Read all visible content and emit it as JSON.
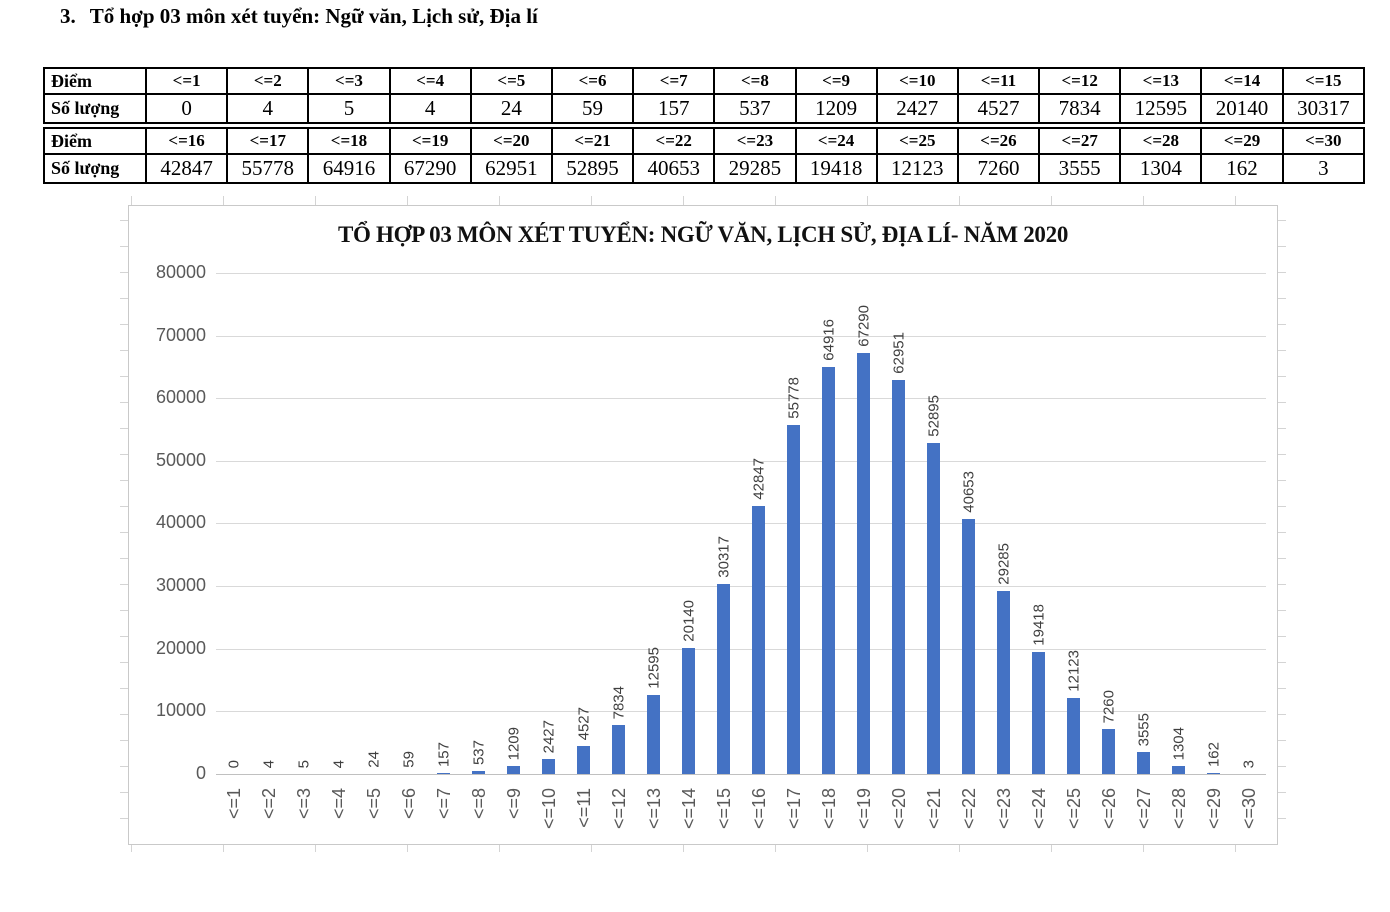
{
  "page": {
    "heading_number": "3.",
    "heading_text": "Tổ hợp 03 môn xét tuyển: Ngữ văn, Lịch sử, Địa lí"
  },
  "table": {
    "score_row_label": "Điểm",
    "count_row_label": "Số lượng",
    "sections": [
      {
        "scores": [
          "<=1",
          "<=2",
          "<=3",
          "<=4",
          "<=5",
          "<=6",
          "<=7",
          "<=8",
          "<=9",
          "<=10",
          "<=11",
          "<=12",
          "<=13",
          "<=14",
          "<=15"
        ],
        "counts": [
          "0",
          "4",
          "5",
          "4",
          "24",
          "59",
          "157",
          "537",
          "1209",
          "2427",
          "4527",
          "7834",
          "12595",
          "20140",
          "30317"
        ]
      },
      {
        "scores": [
          "<=16",
          "<=17",
          "<=18",
          "<=19",
          "<=20",
          "<=21",
          "<=22",
          "<=23",
          "<=24",
          "<=25",
          "<=26",
          "<=27",
          "<=28",
          "<=29",
          "<=30"
        ],
        "counts": [
          "42847",
          "55778",
          "64916",
          "67290",
          "62951",
          "52895",
          "40653",
          "29285",
          "19418",
          "12123",
          "7260",
          "3555",
          "1304",
          "162",
          "3"
        ]
      }
    ]
  },
  "chart_data": {
    "type": "bar",
    "title": "TỔ HỢP 03 MÔN XÉT TUYỂN: NGỮ VĂN, LỊCH SỬ, ĐỊA LÍ- NĂM 2020",
    "categories": [
      "<=1",
      "<=2",
      "<=3",
      "<=4",
      "<=5",
      "<=6",
      "<=7",
      "<=8",
      "<=9",
      "<=10",
      "<=11",
      "<=12",
      "<=13",
      "<=14",
      "<=15",
      "<=16",
      "<=17",
      "<=18",
      "<=19",
      "<=20",
      "<=21",
      "<=22",
      "<=23",
      "<=24",
      "<=25",
      "<=26",
      "<=27",
      "<=28",
      "<=29",
      "<=30"
    ],
    "values": [
      0,
      4,
      5,
      4,
      24,
      59,
      157,
      537,
      1209,
      2427,
      4527,
      7834,
      12595,
      20140,
      30317,
      42847,
      55778,
      64916,
      67290,
      62951,
      52895,
      40653,
      29285,
      19418,
      12123,
      7260,
      3555,
      1304,
      162,
      3
    ],
    "yticks": [
      0,
      10000,
      20000,
      30000,
      40000,
      50000,
      60000,
      70000,
      80000
    ],
    "ylim": [
      0,
      80000
    ],
    "xlabel": "",
    "ylabel": "",
    "grid": true,
    "legend": "none",
    "data_labels": "rotated-90-above-bars",
    "x_tick_rotation": -90,
    "colors": {
      "bar": "#4472C4",
      "data_label": "#404040",
      "axis_label": "#595959",
      "gridline": "#D9D9D9",
      "axis_line": "#C0C0C0",
      "chart_border": "#C9C9C9"
    }
  }
}
